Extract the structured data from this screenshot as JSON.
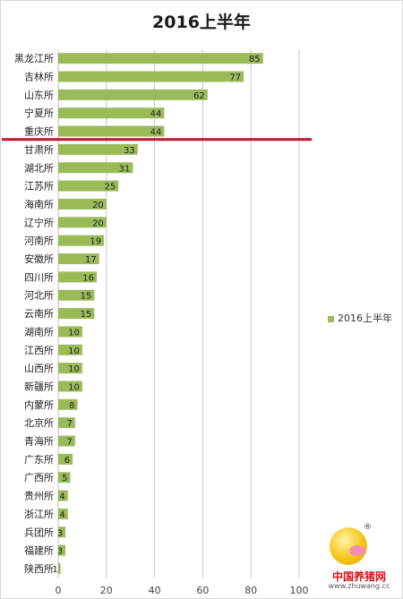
{
  "chart_data": {
    "type": "bar",
    "orientation": "horizontal",
    "title": "2016上半年",
    "categories": [
      "黑龙江所",
      "吉林所",
      "山东所",
      "宁夏所",
      "重庆所",
      "甘肃所",
      "湖北所",
      "江苏所",
      "海南所",
      "辽宁所",
      "河南所",
      "安徽所",
      "四川所",
      "河北所",
      "云南所",
      "湖南所",
      "江西所",
      "山西所",
      "新疆所",
      "内蒙所",
      "北京所",
      "青海所",
      "广东所",
      "广西所",
      "贵州所",
      "浙江所",
      "兵团所",
      "福建所",
      "陕西所"
    ],
    "series": [
      {
        "name": "2016上半年",
        "values": [
          85,
          77,
          62,
          44,
          44,
          33,
          31,
          25,
          20,
          20,
          19,
          17,
          16,
          15,
          15,
          10,
          10,
          10,
          10,
          8,
          7,
          7,
          6,
          5,
          4,
          4,
          3,
          3,
          1
        ]
      }
    ],
    "x_ticks": [
      "0",
      "20",
      "40",
      "60",
      "80",
      "100"
    ],
    "xlim": [
      0,
      100
    ],
    "grid": "vertical",
    "legend_position": "right",
    "annotation": "red line between 重庆所 and 甘肃所",
    "colors": {
      "bar": "#9bbb59",
      "grid": "#c8c8c8",
      "annotation_line": "#c0152e"
    }
  },
  "logo": {
    "name": "中国养猪网",
    "url": "www.zhuwang.cc",
    "reg_mark": "®"
  }
}
